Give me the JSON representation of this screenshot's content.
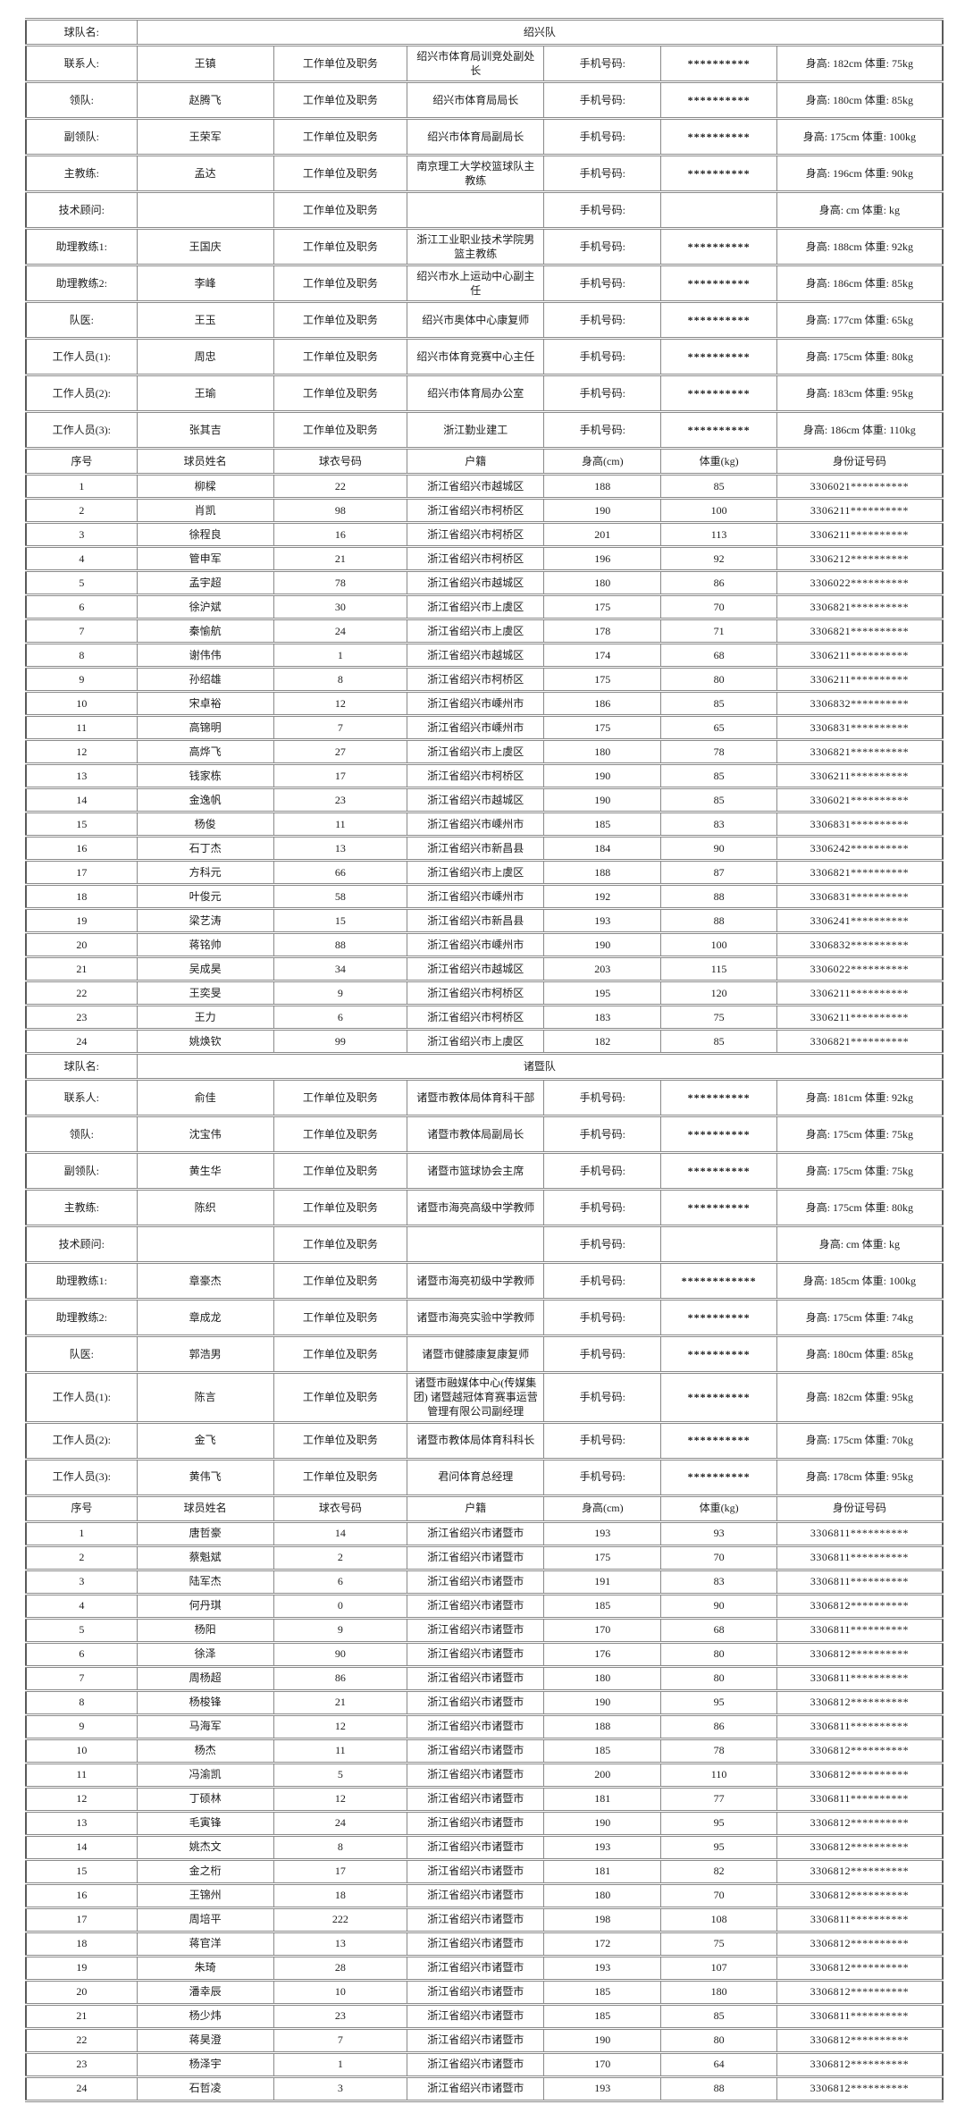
{
  "labels": {
    "team_name": "球队名:",
    "unit": "工作单位及职务",
    "phone": "手机号码:"
  },
  "player_columns": [
    "序号",
    "球员姓名",
    "球衣号码",
    "户籍",
    "身高(cm)",
    "体重(kg)",
    "身份证号码"
  ],
  "teams": [
    {
      "name": "绍兴队",
      "staff": [
        {
          "role": "联系人:",
          "name": "王镇",
          "unit": "绍兴市体育局训竞处副处长",
          "phone": "**********",
          "hw": "身高: 182cm 体重: 75kg"
        },
        {
          "role": "领队:",
          "name": "赵腾飞",
          "unit": "绍兴市体育局局长",
          "phone": "**********",
          "hw": "身高: 180cm 体重: 85kg"
        },
        {
          "role": "副领队:",
          "name": "王荣军",
          "unit": "绍兴市体育局副局长",
          "phone": "**********",
          "hw": "身高: 175cm 体重: 100kg"
        },
        {
          "role": "主教练:",
          "name": "孟达",
          "unit": "南京理工大学校篮球队主教练",
          "phone": "**********",
          "hw": "身高: 196cm 体重: 90kg"
        },
        {
          "role": "技术顾问:",
          "name": "",
          "unit": "",
          "phone": "",
          "hw": "身高: cm 体重: kg"
        },
        {
          "role": "助理教练1:",
          "name": "王国庆",
          "unit": "浙江工业职业技术学院男篮主教练",
          "phone": "**********",
          "hw": "身高: 188cm 体重: 92kg"
        },
        {
          "role": "助理教练2:",
          "name": "李峰",
          "unit": "绍兴市水上运动中心副主任",
          "phone": "**********",
          "hw": "身高: 186cm 体重: 85kg"
        },
        {
          "role": "队医:",
          "name": "王玉",
          "unit": "绍兴市奥体中心康复师",
          "phone": "**********",
          "hw": "身高: 177cm 体重: 65kg"
        },
        {
          "role": "工作人员(1):",
          "name": "周忠",
          "unit": "绍兴市体育竞赛中心主任",
          "phone": "**********",
          "hw": "身高: 175cm 体重: 80kg"
        },
        {
          "role": "工作人员(2):",
          "name": "王瑜",
          "unit": "绍兴市体育局办公室",
          "phone": "**********",
          "hw": "身高: 183cm 体重: 95kg"
        },
        {
          "role": "工作人员(3):",
          "name": "张其吉",
          "unit": "浙江勤业建工",
          "phone": "**********",
          "hw": "身高: 186cm 体重: 110kg"
        }
      ],
      "players": [
        [
          "1",
          "柳樑",
          "22",
          "浙江省绍兴市越城区",
          "188",
          "85",
          "3306021**********"
        ],
        [
          "2",
          "肖凯",
          "98",
          "浙江省绍兴市柯桥区",
          "190",
          "100",
          "3306211**********"
        ],
        [
          "3",
          "徐程良",
          "16",
          "浙江省绍兴市柯桥区",
          "201",
          "113",
          "3306211**********"
        ],
        [
          "4",
          "管申军",
          "21",
          "浙江省绍兴市柯桥区",
          "196",
          "92",
          "3306212**********"
        ],
        [
          "5",
          "孟宇超",
          "78",
          "浙江省绍兴市越城区",
          "180",
          "86",
          "3306022**********"
        ],
        [
          "6",
          "徐沪斌",
          "30",
          "浙江省绍兴市上虞区",
          "175",
          "70",
          "3306821**********"
        ],
        [
          "7",
          "秦愉航",
          "24",
          "浙江省绍兴市上虞区",
          "178",
          "71",
          "3306821**********"
        ],
        [
          "8",
          "谢伟伟",
          "1",
          "浙江省绍兴市越城区",
          "174",
          "68",
          "3306211**********"
        ],
        [
          "9",
          "孙绍雄",
          "8",
          "浙江省绍兴市柯桥区",
          "175",
          "80",
          "3306211**********"
        ],
        [
          "10",
          "宋卓裕",
          "12",
          "浙江省绍兴市嵊州市",
          "186",
          "85",
          "3306832**********"
        ],
        [
          "11",
          "高锦明",
          "7",
          "浙江省绍兴市嵊州市",
          "175",
          "65",
          "3306831**********"
        ],
        [
          "12",
          "高烨飞",
          "27",
          "浙江省绍兴市上虞区",
          "180",
          "78",
          "3306821**********"
        ],
        [
          "13",
          "钱家栋",
          "17",
          "浙江省绍兴市柯桥区",
          "190",
          "85",
          "3306211**********"
        ],
        [
          "14",
          "金逸帆",
          "23",
          "浙江省绍兴市越城区",
          "190",
          "85",
          "3306021**********"
        ],
        [
          "15",
          "杨俊",
          "11",
          "浙江省绍兴市嵊州市",
          "185",
          "83",
          "3306831**********"
        ],
        [
          "16",
          "石丁杰",
          "13",
          "浙江省绍兴市新昌县",
          "184",
          "90",
          "3306242**********"
        ],
        [
          "17",
          "方科元",
          "66",
          "浙江省绍兴市上虞区",
          "188",
          "87",
          "3306821**********"
        ],
        [
          "18",
          "叶俊元",
          "58",
          "浙江省绍兴市嵊州市",
          "192",
          "88",
          "3306831**********"
        ],
        [
          "19",
          "梁艺涛",
          "15",
          "浙江省绍兴市新昌县",
          "193",
          "88",
          "3306241**********"
        ],
        [
          "20",
          "蒋铭帅",
          "88",
          "浙江省绍兴市嵊州市",
          "190",
          "100",
          "3306832**********"
        ],
        [
          "21",
          "吴成昊",
          "34",
          "浙江省绍兴市越城区",
          "203",
          "115",
          "3306022**********"
        ],
        [
          "22",
          "王奕旻",
          "9",
          "浙江省绍兴市柯桥区",
          "195",
          "120",
          "3306211**********"
        ],
        [
          "23",
          "王力",
          "6",
          "浙江省绍兴市柯桥区",
          "183",
          "75",
          "3306211**********"
        ],
        [
          "24",
          "姚焕钦",
          "99",
          "浙江省绍兴市上虞区",
          "182",
          "85",
          "3306821**********"
        ]
      ]
    },
    {
      "name": "诸暨队",
      "staff": [
        {
          "role": "联系人:",
          "name": "俞佳",
          "unit": "诸暨市教体局体育科干部",
          "phone": "**********",
          "hw": "身高: 181cm 体重: 92kg"
        },
        {
          "role": "领队:",
          "name": "沈宝伟",
          "unit": "诸暨市教体局副局长",
          "phone": "**********",
          "hw": "身高: 175cm 体重: 75kg"
        },
        {
          "role": "副领队:",
          "name": "黄生华",
          "unit": "诸暨市篮球协会主席",
          "phone": "**********",
          "hw": "身高: 175cm 体重: 75kg"
        },
        {
          "role": "主教练:",
          "name": "陈织",
          "unit": "诸暨市海亮高级中学教师",
          "phone": "**********",
          "hw": "身高: 175cm 体重: 80kg"
        },
        {
          "role": "技术顾问:",
          "name": "",
          "unit": "",
          "phone": "",
          "hw": "身高: cm 体重: kg"
        },
        {
          "role": "助理教练1:",
          "name": "章豪杰",
          "unit": "诸暨市海亮初级中学教师",
          "phone": "************",
          "hw": "身高: 185cm 体重: 100kg"
        },
        {
          "role": "助理教练2:",
          "name": "章成龙",
          "unit": "诸暨市海亮实验中学教师",
          "phone": "**********",
          "hw": "身高: 175cm 体重: 74kg"
        },
        {
          "role": "队医:",
          "name": "郭浩男",
          "unit": "诸暨市健膝康复康复师",
          "phone": "**********",
          "hw": "身高: 180cm 体重: 85kg"
        },
        {
          "role": "工作人员(1):",
          "name": "陈言",
          "unit": "诸暨市融媒体中心(传媒集团) 诸暨越冠体育赛事运营管理有限公司副经理",
          "phone": "**********",
          "hw": "身高: 182cm 体重: 95kg"
        },
        {
          "role": "工作人员(2):",
          "name": "金飞",
          "unit": "诸暨市教体局体育科科长",
          "phone": "**********",
          "hw": "身高: 175cm 体重: 70kg"
        },
        {
          "role": "工作人员(3):",
          "name": "黄伟飞",
          "unit": "君问体育总经理",
          "phone": "**********",
          "hw": "身高: 178cm 体重: 95kg"
        }
      ],
      "players": [
        [
          "1",
          "唐哲豪",
          "14",
          "浙江省绍兴市诸暨市",
          "193",
          "93",
          "3306811**********"
        ],
        [
          "2",
          "蔡魁斌",
          "2",
          "浙江省绍兴市诸暨市",
          "175",
          "70",
          "3306811**********"
        ],
        [
          "3",
          "陆军杰",
          "6",
          "浙江省绍兴市诸暨市",
          "191",
          "83",
          "3306811**********"
        ],
        [
          "4",
          "何丹琪",
          "0",
          "浙江省绍兴市诸暨市",
          "185",
          "90",
          "3306812**********"
        ],
        [
          "5",
          "杨阳",
          "9",
          "浙江省绍兴市诸暨市",
          "170",
          "68",
          "3306811**********"
        ],
        [
          "6",
          "徐泽",
          "90",
          "浙江省绍兴市诸暨市",
          "176",
          "80",
          "3306812**********"
        ],
        [
          "7",
          "周杨超",
          "86",
          "浙江省绍兴市诸暨市",
          "180",
          "80",
          "3306811**********"
        ],
        [
          "8",
          "杨梭锋",
          "21",
          "浙江省绍兴市诸暨市",
          "190",
          "95",
          "3306812**********"
        ],
        [
          "9",
          "马海军",
          "12",
          "浙江省绍兴市诸暨市",
          "188",
          "86",
          "3306811**********"
        ],
        [
          "10",
          "杨杰",
          "11",
          "浙江省绍兴市诸暨市",
          "185",
          "78",
          "3306812**********"
        ],
        [
          "11",
          "冯渝凯",
          "5",
          "浙江省绍兴市诸暨市",
          "200",
          "110",
          "3306812**********"
        ],
        [
          "12",
          "丁硕林",
          "12",
          "浙江省绍兴市诸暨市",
          "181",
          "77",
          "3306811**********"
        ],
        [
          "13",
          "毛寅锋",
          "24",
          "浙江省绍兴市诸暨市",
          "190",
          "95",
          "3306812**********"
        ],
        [
          "14",
          "姚杰文",
          "8",
          "浙江省绍兴市诸暨市",
          "193",
          "95",
          "3306812**********"
        ],
        [
          "15",
          "金之桁",
          "17",
          "浙江省绍兴市诸暨市",
          "181",
          "82",
          "3306812**********"
        ],
        [
          "16",
          "王锦州",
          "18",
          "浙江省绍兴市诸暨市",
          "180",
          "70",
          "3306812**********"
        ],
        [
          "17",
          "周培平",
          "222",
          "浙江省绍兴市诸暨市",
          "198",
          "108",
          "3306811**********"
        ],
        [
          "18",
          "蒋官洋",
          "13",
          "浙江省绍兴市诸暨市",
          "172",
          "75",
          "3306812**********"
        ],
        [
          "19",
          "朱琦",
          "28",
          "浙江省绍兴市诸暨市",
          "193",
          "107",
          "3306812**********"
        ],
        [
          "20",
          "潘幸辰",
          "10",
          "浙江省绍兴市诸暨市",
          "185",
          "180",
          "3306812**********"
        ],
        [
          "21",
          "杨少炜",
          "23",
          "浙江省绍兴市诸暨市",
          "185",
          "85",
          "3306811**********"
        ],
        [
          "22",
          "蒋昊澄",
          "7",
          "浙江省绍兴市诸暨市",
          "190",
          "80",
          "3306812**********"
        ],
        [
          "23",
          "杨泽宇",
          "1",
          "浙江省绍兴市诸暨市",
          "170",
          "64",
          "3306812**********"
        ],
        [
          "24",
          "石哲凌",
          "3",
          "浙江省绍兴市诸暨市",
          "193",
          "88",
          "3306812**********"
        ]
      ]
    }
  ]
}
